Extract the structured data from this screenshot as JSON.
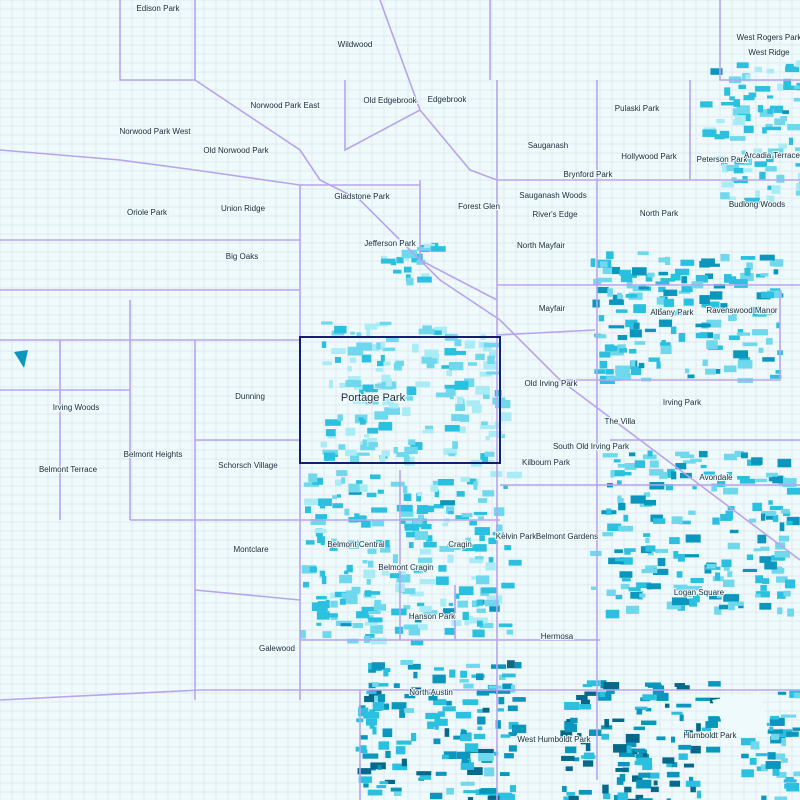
{
  "map": {
    "labels": [
      "Edison Park",
      "Wildwood",
      "West Rogers Park",
      "West Ridge",
      "Old Edgebrook",
      "Edgebrook",
      "Pulaski Park",
      "Norwood Park East",
      "Norwood Park West",
      "Sauganash",
      "Old Norwood Park",
      "Hollywood Park",
      "Peterson Park",
      "Arcadia Terrace",
      "Brynford Park",
      "Gladstone Park",
      "Sauganash Woods",
      "Forest Glen",
      "Oriole Park",
      "Union Ridge",
      "River's Edge",
      "North Park",
      "Budlong Woods",
      "Jefferson Park",
      "North Mayfair",
      "Big Oaks",
      "Mayfair",
      "Albany Park",
      "Ravenswood Manor",
      "Portage Park",
      "Old Irving Park",
      "Dunning",
      "Irving Woods",
      "Irving Park",
      "The Villa",
      "South Old Irving Park",
      "Belmont Heights",
      "Kilbourn Park",
      "Schorsch Village",
      "Belmont Terrace",
      "Avondale",
      "Kelvin Park",
      "Belmont Gardens",
      "Belmont Central",
      "Cragin",
      "Montclare",
      "Belmont Cragin",
      "Logan Square",
      "Hanson Park",
      "Hermosa",
      "Galewood",
      "North Austin",
      "West Humboldt Park",
      "Humboldt Park"
    ]
  }
}
